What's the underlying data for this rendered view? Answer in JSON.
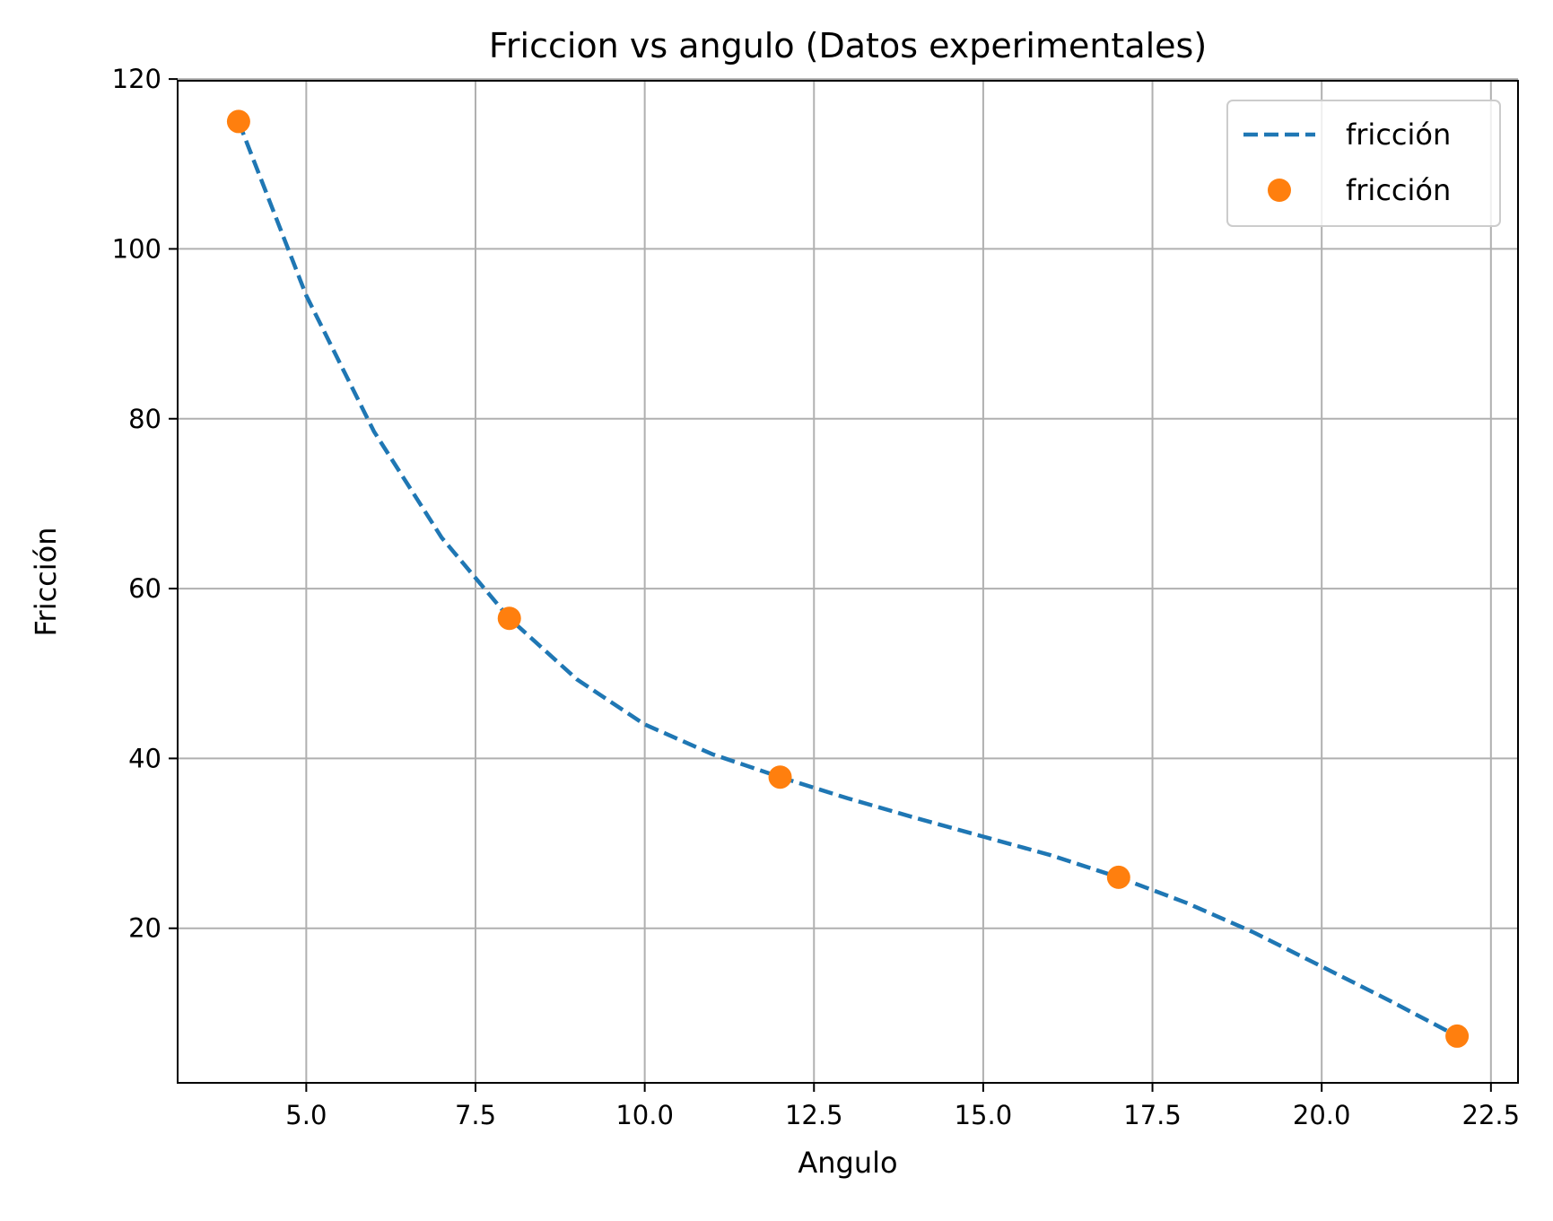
{
  "chart_data": {
    "type": "line",
    "title": "Friccion vs angulo (Datos experimentales)",
    "xlabel": "Angulo",
    "ylabel": "Fricción",
    "xlim": [
      3.1,
      22.9
    ],
    "ylim": [
      1.8,
      119.8
    ],
    "xticks": [
      5.0,
      7.5,
      10.0,
      12.5,
      15.0,
      17.5,
      20.0,
      22.5
    ],
    "xtick_labels": [
      "5.0",
      "7.5",
      "10.0",
      "12.5",
      "15.0",
      "17.5",
      "20.0",
      "22.5"
    ],
    "yticks": [
      20,
      40,
      60,
      80,
      100,
      120
    ],
    "ytick_labels": [
      "20",
      "40",
      "60",
      "80",
      "100",
      "120"
    ],
    "grid": true,
    "legend_position": "top-right",
    "series": [
      {
        "name": "fricción",
        "kind": "line",
        "style": "dashed",
        "color": "#1f77b4",
        "x": [
          4,
          5,
          6,
          7,
          8,
          9,
          10,
          11,
          12,
          13,
          14,
          15,
          16,
          17,
          18,
          19,
          20,
          21,
          22
        ],
        "y": [
          115,
          94.5,
          78.5,
          66,
          56.5,
          49.3,
          44,
          40.5,
          37.8,
          35.3,
          33,
          30.8,
          28.6,
          26,
          23,
          19.5,
          15.5,
          11.5,
          7.3
        ]
      },
      {
        "name": "fricción",
        "kind": "scatter",
        "color": "#ff7f0e",
        "x": [
          4,
          8,
          12,
          17,
          22
        ],
        "y": [
          115,
          56.5,
          37.8,
          26,
          7.3
        ]
      }
    ]
  }
}
